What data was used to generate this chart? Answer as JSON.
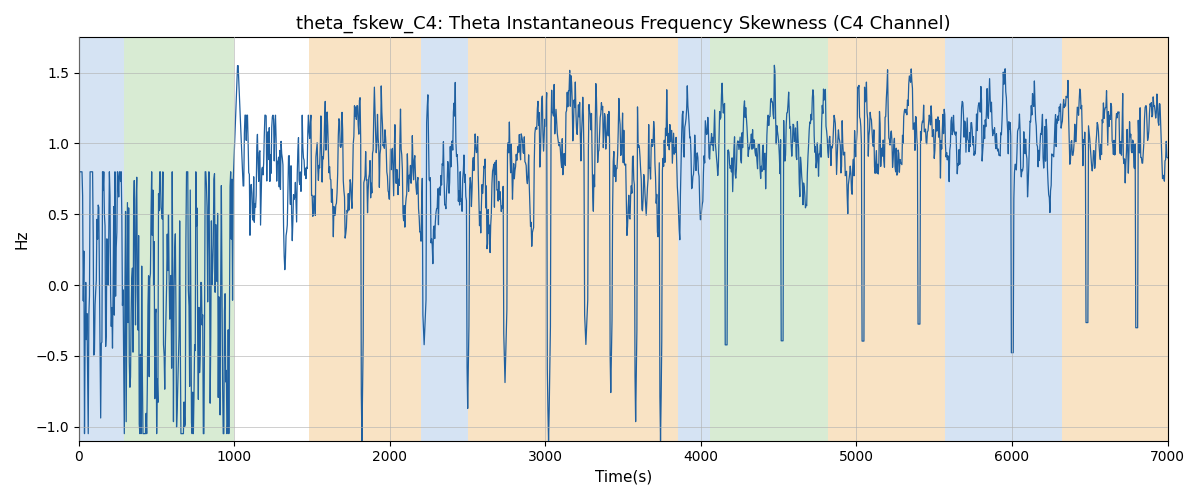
{
  "title": "theta_fskew_C4: Theta Instantaneous Frequency Skewness (C4 Channel)",
  "xlabel": "Time(s)",
  "ylabel": "Hz",
  "xlim": [
    0,
    7000
  ],
  "ylim": [
    -1.1,
    1.75
  ],
  "line_color": "#2060a0",
  "line_width": 0.9,
  "bg_bands": [
    {
      "xmin": 0,
      "xmax": 290,
      "color": "#adc8e8",
      "alpha": 0.5
    },
    {
      "xmin": 290,
      "xmax": 1000,
      "color": "#b2d8a8",
      "alpha": 0.5
    },
    {
      "xmin": 1480,
      "xmax": 2200,
      "color": "#f5c98a",
      "alpha": 0.5
    },
    {
      "xmin": 2200,
      "xmax": 2500,
      "color": "#adc8e8",
      "alpha": 0.5
    },
    {
      "xmin": 2500,
      "xmax": 3850,
      "color": "#f5c98a",
      "alpha": 0.5
    },
    {
      "xmin": 3850,
      "xmax": 4060,
      "color": "#adc8e8",
      "alpha": 0.5
    },
    {
      "xmin": 4060,
      "xmax": 4820,
      "color": "#b2d8a8",
      "alpha": 0.5
    },
    {
      "xmin": 4820,
      "xmax": 5570,
      "color": "#f5c98a",
      "alpha": 0.5
    },
    {
      "xmin": 5570,
      "xmax": 6320,
      "color": "#adc8e8",
      "alpha": 0.5
    },
    {
      "xmin": 6320,
      "xmax": 7050,
      "color": "#f5c98a",
      "alpha": 0.5
    }
  ],
  "grid_color": "#b0b0b0",
  "grid_alpha": 0.6,
  "title_fontsize": 13,
  "label_fontsize": 11,
  "tick_fontsize": 10,
  "fig_facecolor": "#ffffff",
  "xticks": [
    0,
    1000,
    2000,
    3000,
    4000,
    5000,
    6000,
    7000
  ],
  "yticks": [
    -1.0,
    -0.5,
    0.0,
    0.5,
    1.0,
    1.5
  ]
}
